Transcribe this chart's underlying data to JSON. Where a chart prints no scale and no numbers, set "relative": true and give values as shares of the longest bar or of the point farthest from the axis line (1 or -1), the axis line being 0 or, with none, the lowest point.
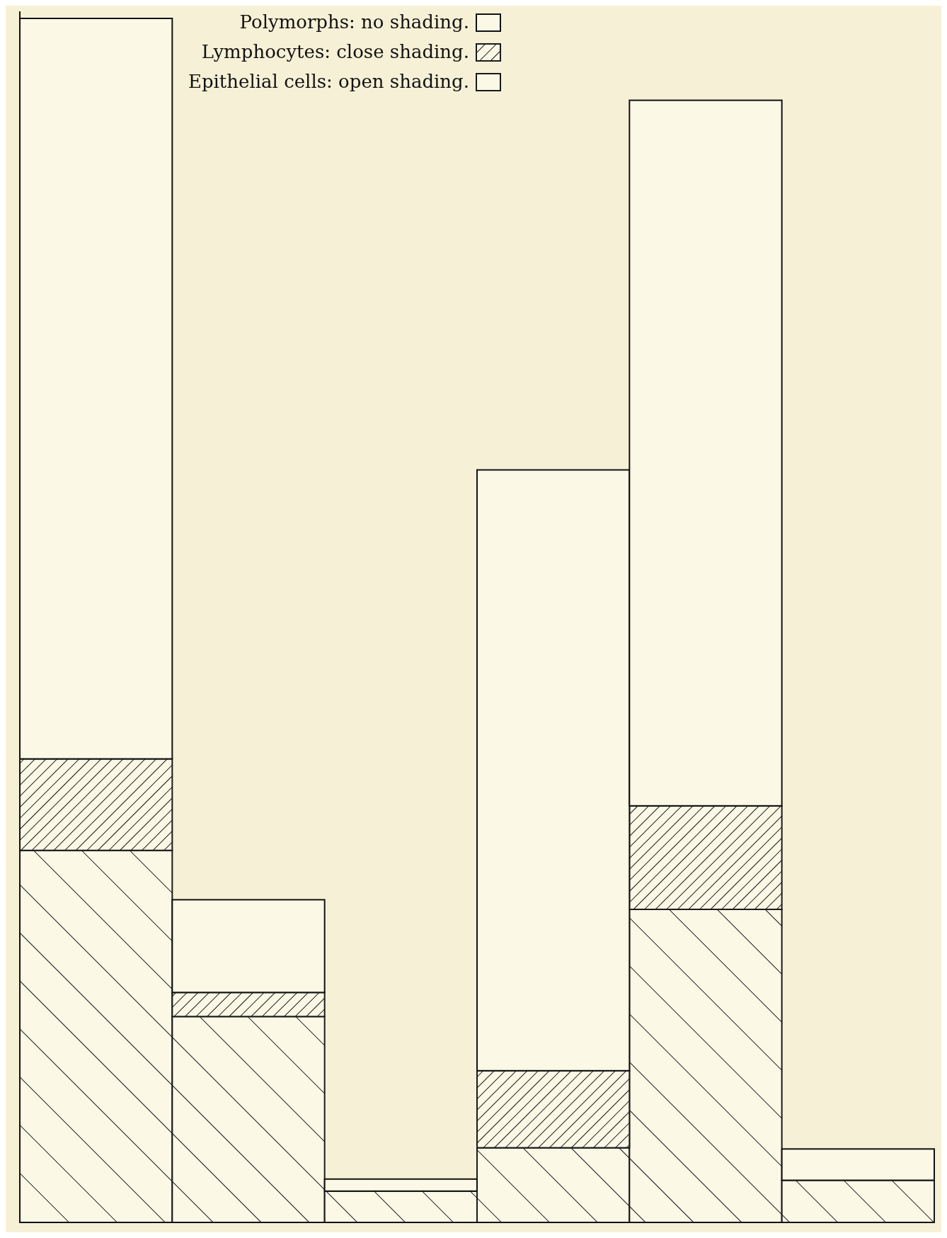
{
  "chart_data": {
    "type": "bar",
    "stacked": true,
    "relative": true,
    "categories": [
      null,
      null,
      null,
      null,
      null,
      null
    ],
    "legend": "top",
    "series": [
      {
        "name": "Epithelial cells: open shading.",
        "color": "#1a1a1a",
        "values": [
          0.309,
          0.171,
          0.026,
          0.062,
          0.26,
          0.035
        ]
      },
      {
        "name": "Lymphocytes: close shading.",
        "color": "#1a1a1a",
        "values": [
          0.076,
          0.02,
          0,
          0.064,
          0.086,
          0
        ]
      },
      {
        "name": "Polymorphs: no shading.",
        "color": "#fbf8e6",
        "values": [
          0.615,
          0.077,
          0.01,
          0.499,
          0.586,
          0.026
        ]
      }
    ]
  }
}
